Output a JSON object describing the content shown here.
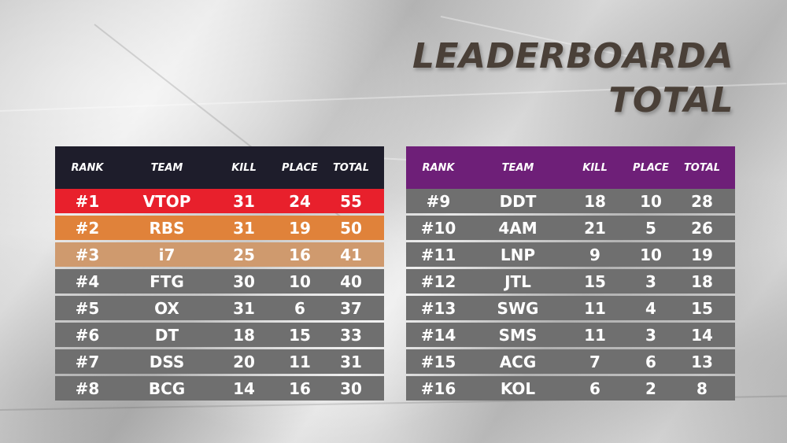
{
  "title": {
    "line1": "LEADERBOARDA",
    "line2": "TOTAL"
  },
  "columns": {
    "rank": "RANK",
    "team": "TEAM",
    "kill": "KILL",
    "place": "PLACE",
    "total": "TOTAL"
  },
  "colors": {
    "left_header": "#1e1d2b",
    "right_header": "#6e1f78",
    "row_default": "#6f6f6f",
    "rank1": "#e8202c",
    "rank2": "#e0823a",
    "rank3": "#cf9a6e"
  },
  "left_rows": [
    {
      "rank": "#1",
      "team": "VTOP",
      "kill": "31",
      "place": "24",
      "total": "55"
    },
    {
      "rank": "#2",
      "team": "RBS",
      "kill": "31",
      "place": "19",
      "total": "50"
    },
    {
      "rank": "#3",
      "team": "i7",
      "kill": "25",
      "place": "16",
      "total": "41"
    },
    {
      "rank": "#4",
      "team": "FTG",
      "kill": "30",
      "place": "10",
      "total": "40"
    },
    {
      "rank": "#5",
      "team": "OX",
      "kill": "31",
      "place": "6",
      "total": "37"
    },
    {
      "rank": "#6",
      "team": "DT",
      "kill": "18",
      "place": "15",
      "total": "33"
    },
    {
      "rank": "#7",
      "team": "DSS",
      "kill": "20",
      "place": "11",
      "total": "31"
    },
    {
      "rank": "#8",
      "team": "BCG",
      "kill": "14",
      "place": "16",
      "total": "30"
    }
  ],
  "right_rows": [
    {
      "rank": "#9",
      "team": "DDT",
      "kill": "18",
      "place": "10",
      "total": "28"
    },
    {
      "rank": "#10",
      "team": "4AM",
      "kill": "21",
      "place": "5",
      "total": "26"
    },
    {
      "rank": "#11",
      "team": "LNP",
      "kill": "9",
      "place": "10",
      "total": "19"
    },
    {
      "rank": "#12",
      "team": "JTL",
      "kill": "15",
      "place": "3",
      "total": "18"
    },
    {
      "rank": "#13",
      "team": "SWG",
      "kill": "11",
      "place": "4",
      "total": "15"
    },
    {
      "rank": "#14",
      "team": "SMS",
      "kill": "11",
      "place": "3",
      "total": "14"
    },
    {
      "rank": "#15",
      "team": "ACG",
      "kill": "7",
      "place": "6",
      "total": "13"
    },
    {
      "rank": "#16",
      "team": "KOL",
      "kill": "6",
      "place": "2",
      "total": "8"
    }
  ]
}
